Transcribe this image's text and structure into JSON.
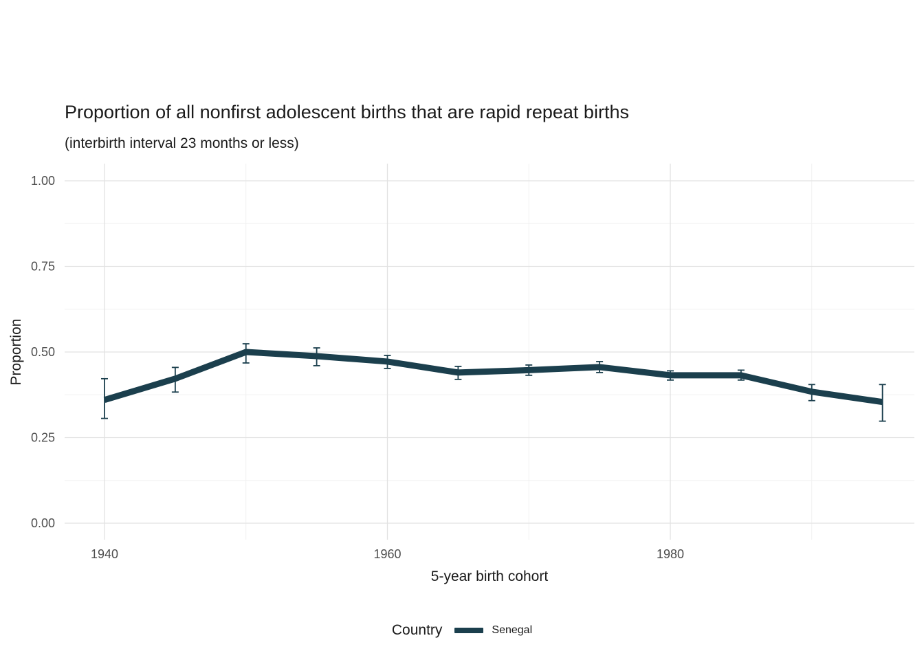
{
  "title": "Proportion of all nonfirst adolescent births that are rapid repeat births",
  "subtitle": "(interbirth interval 23 months or less)",
  "chart_data": {
    "type": "line",
    "title": "Proportion of all nonfirst adolescent births that are rapid repeat births",
    "subtitle": "(interbirth interval 23 months or less)",
    "xlabel": "5-year birth cohort",
    "ylabel": "Proportion",
    "x": [
      1940,
      1945,
      1950,
      1955,
      1960,
      1965,
      1970,
      1975,
      1980,
      1985,
      1990,
      1995
    ],
    "series": [
      {
        "name": "Senegal",
        "values": [
          0.36,
          0.422,
          0.5,
          0.488,
          0.472,
          0.44,
          0.447,
          0.456,
          0.432,
          0.432,
          0.384,
          0.354
        ],
        "lower": [
          0.306,
          0.383,
          0.468,
          0.46,
          0.452,
          0.42,
          0.432,
          0.44,
          0.418,
          0.418,
          0.358,
          0.298
        ],
        "upper": [
          0.422,
          0.455,
          0.524,
          0.512,
          0.49,
          0.458,
          0.462,
          0.472,
          0.445,
          0.447,
          0.405,
          0.405
        ],
        "color": "#1b3f4d"
      }
    ],
    "xlim": [
      1937,
      1998
    ],
    "ylim": [
      0,
      1
    ],
    "xticks": [
      1940,
      1960,
      1980
    ],
    "xtick_labels": [
      "1940",
      "1960",
      "1980"
    ],
    "xticks_minor": [
      1950,
      1970,
      1990
    ],
    "yticks": [
      0,
      0.25,
      0.5,
      0.75,
      1.0
    ],
    "ytick_labels": [
      "0.00",
      "0.25",
      "0.50",
      "0.75",
      "1.00"
    ],
    "yticks_minor": [
      0.125,
      0.375,
      0.625,
      0.875
    ],
    "grid": true,
    "grid_major_color": "#e2e2e2",
    "grid_minor_color": "#f0f0f0",
    "tick_text_color": "#4d4d4d",
    "legend_position": "bottom"
  },
  "legend": {
    "title": "Country",
    "items": [
      {
        "label": "Senegal",
        "color": "#1b3f4d"
      }
    ]
  }
}
